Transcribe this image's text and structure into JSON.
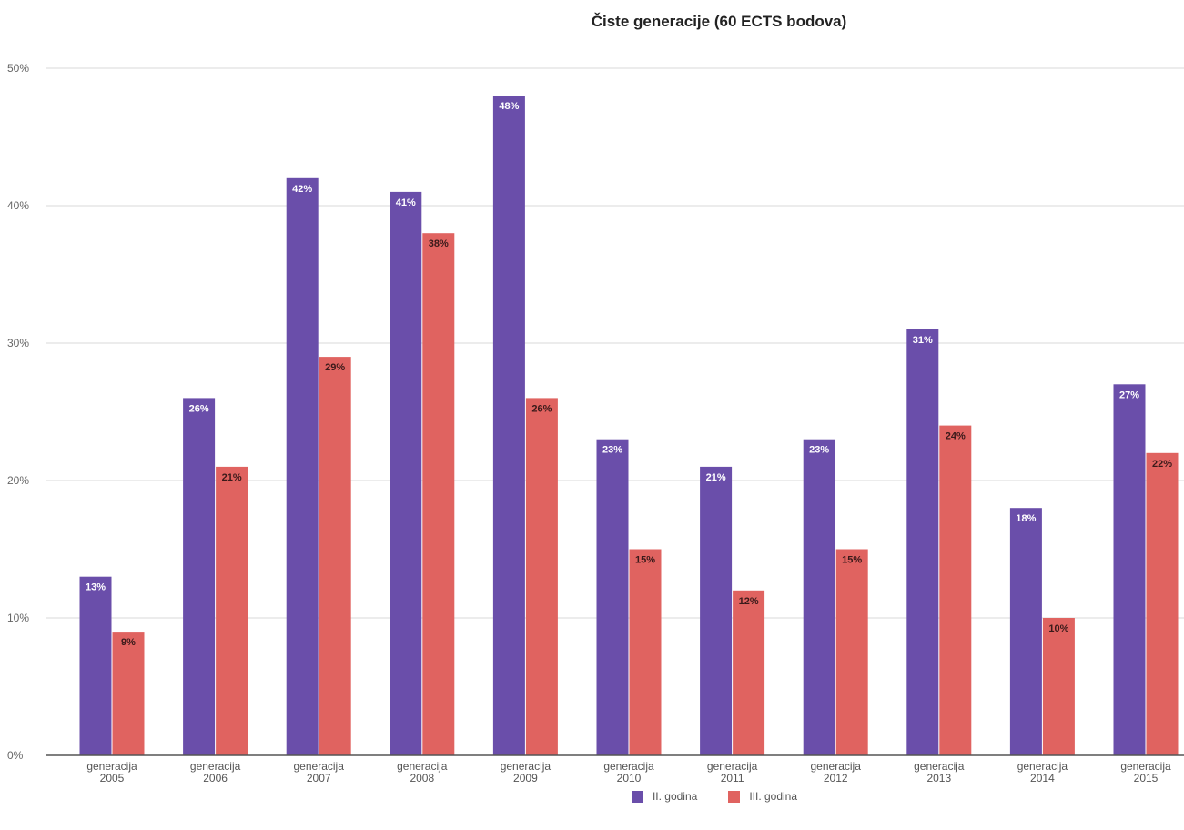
{
  "chart_data": {
    "type": "bar",
    "title": "Čiste generacije (60 ECTS bodova)",
    "xlabel": "",
    "ylabel": "",
    "ylim": [
      0,
      50
    ],
    "yticks": [
      "0%",
      "10%",
      "20%",
      "30%",
      "40%",
      "50%"
    ],
    "grid": true,
    "legend_position": "bottom",
    "categories": [
      [
        "generacija",
        "2005"
      ],
      [
        "generacija",
        "2006"
      ],
      [
        "generacija",
        "2007"
      ],
      [
        "generacija",
        "2008"
      ],
      [
        "generacija",
        "2009"
      ],
      [
        "generacija",
        "2010"
      ],
      [
        "generacija",
        "2011"
      ],
      [
        "generacija",
        "2012"
      ],
      [
        "generacija",
        "2013"
      ],
      [
        "generacija",
        "2014"
      ],
      [
        "generacija",
        "2015"
      ]
    ],
    "series": [
      {
        "name": "II. godina",
        "color": "#6a4eaa",
        "label_color": "#ffffff",
        "values": [
          13,
          26,
          42,
          41,
          48,
          23,
          21,
          23,
          31,
          18,
          27
        ],
        "labels": [
          "13%",
          "26%",
          "42%",
          "41%",
          "48%",
          "23%",
          "21%",
          "23%",
          "31%",
          "18%",
          "27%"
        ]
      },
      {
        "name": "III. godina",
        "color": "#e06360",
        "label_color": "#3a1a1a",
        "values": [
          9,
          21,
          29,
          38,
          26,
          15,
          12,
          15,
          24,
          10,
          22
        ],
        "labels": [
          "9%",
          "21%",
          "29%",
          "38%",
          "26%",
          "15%",
          "12%",
          "15%",
          "24%",
          "10%",
          "22%"
        ]
      }
    ]
  }
}
